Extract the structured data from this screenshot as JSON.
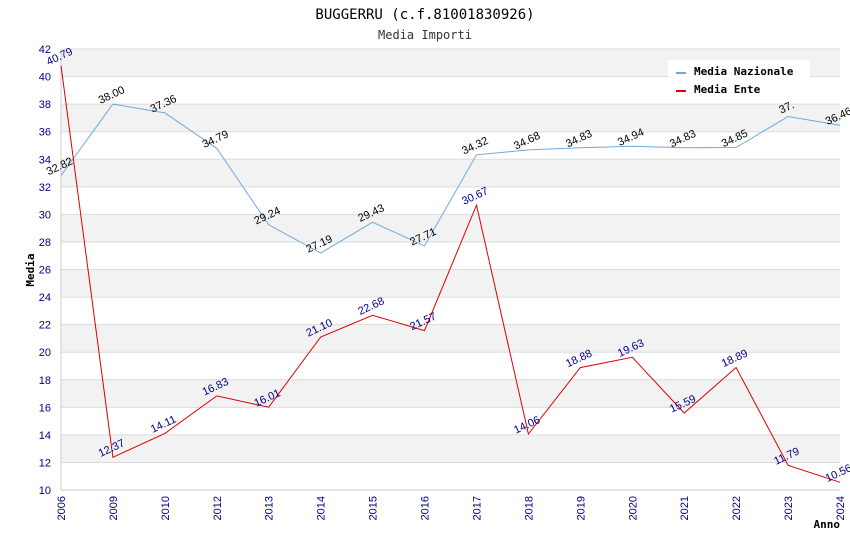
{
  "chart_data": {
    "type": "line",
    "title": "BUGGERRU (c.f.81001830926)",
    "subtitle": "Media Importi",
    "xlabel": "Anno",
    "ylabel": "Media",
    "ylim": [
      10,
      42
    ],
    "yticks": [
      10,
      12,
      14,
      16,
      18,
      20,
      22,
      24,
      26,
      28,
      30,
      32,
      34,
      36,
      38,
      40,
      42
    ],
    "categories": [
      "2006",
      "2009",
      "2010",
      "2012",
      "2013",
      "2014",
      "2015",
      "2016",
      "2017",
      "2018",
      "2019",
      "2020",
      "2021",
      "2022",
      "2023",
      "2024"
    ],
    "legend_position": "top-right",
    "series": [
      {
        "name": "Media Nazionale",
        "color": "#6fa8dc",
        "values": [
          32.82,
          38.0,
          37.36,
          34.79,
          29.24,
          27.19,
          29.43,
          27.71,
          34.32,
          34.68,
          34.83,
          34.94,
          34.83,
          34.85,
          37.1,
          36.46
        ],
        "labels": [
          "32.82",
          "38.00",
          "37.36",
          "34.79",
          "29.24",
          "27.19",
          "29.43",
          "27.71",
          "34.32",
          "34.68",
          "34.83",
          "34.94",
          "34.83",
          "34.85",
          "37.",
          "36.46"
        ]
      },
      {
        "name": "Media Ente",
        "color": "#dd0000",
        "values": [
          40.79,
          12.37,
          14.11,
          16.83,
          16.01,
          21.1,
          22.68,
          21.57,
          30.67,
          14.06,
          18.88,
          19.63,
          15.59,
          18.89,
          11.79,
          10.56
        ],
        "labels": [
          "40.79",
          "12.37",
          "14.11",
          "16.83",
          "16.01",
          "21.10",
          "22.68",
          "21.57",
          "30.67",
          "14.06",
          "18.88",
          "19.63",
          "15.59",
          "18.89",
          "11.79",
          "10.56"
        ]
      }
    ]
  }
}
